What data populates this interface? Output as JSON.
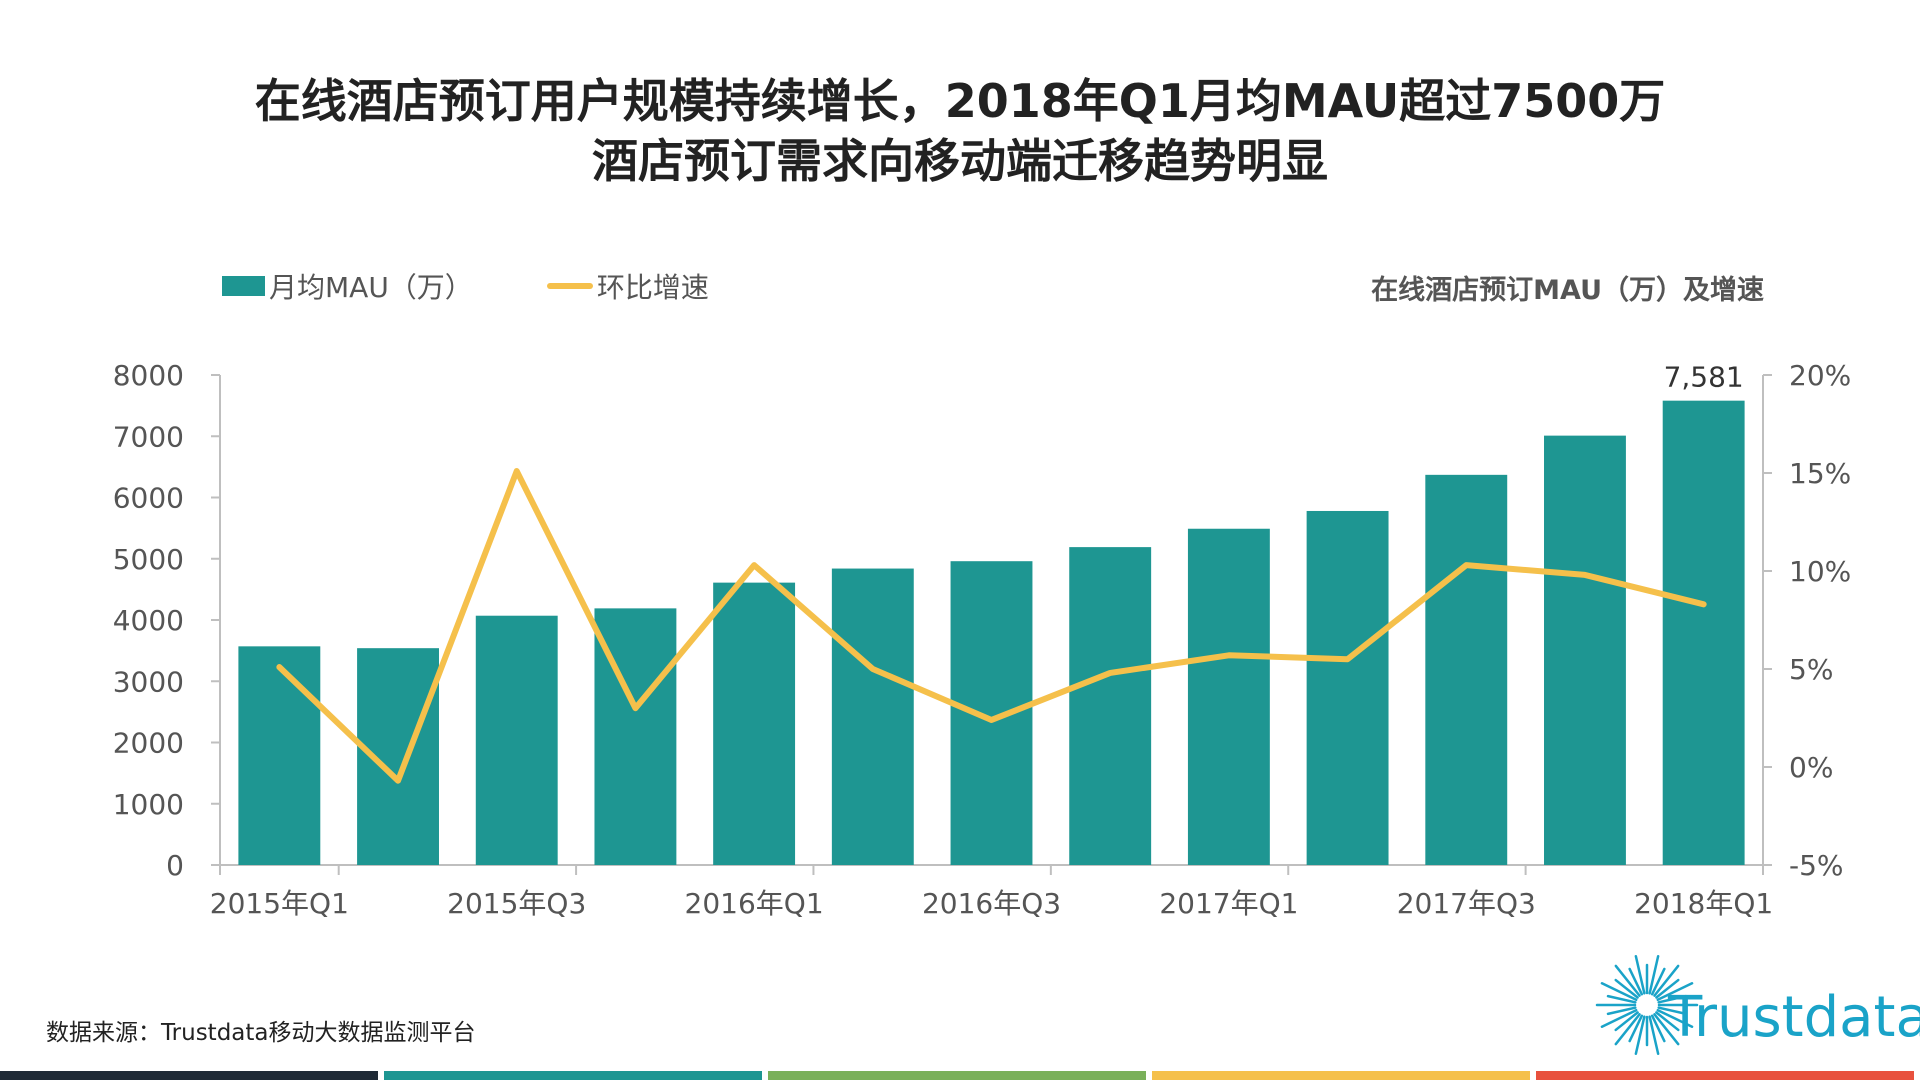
{
  "title_line1": "在线酒店预订用户规模持续增长，2018年Q1月均MAU超过7500万",
  "title_line2": "酒店预订需求向移动端迁移趋势明显",
  "chart_subtitle": "在线酒店预订MAU（万）及增速",
  "source": "数据来源：Trustdata移动大数据监测平台",
  "logo_text": "Trustdata",
  "colors": {
    "bar": "#1e9692",
    "line": "#f5c04b",
    "axis": "#bfbfbf",
    "tick_text": "#555555",
    "footer": [
      "#1f2a36",
      "#1e9692",
      "#7ab05a",
      "#f5c04b",
      "#e8513e"
    ]
  },
  "chart_data": {
    "type": "bar",
    "categories": [
      "2015年Q1",
      "2015年Q2",
      "2015年Q3",
      "2015年Q4",
      "2016年Q1",
      "2016年Q2",
      "2016年Q3",
      "2016年Q4",
      "2017年Q1",
      "2017年Q2",
      "2017年Q3",
      "2017年Q4",
      "2018年Q1"
    ],
    "x_tick_labels": [
      "2015年Q1",
      "2015年Q3",
      "2016年Q1",
      "2016年Q3",
      "2017年Q1",
      "2017年Q3",
      "2018年Q1"
    ],
    "series": [
      {
        "name": "月均MAU（万）",
        "type": "bar",
        "axis": "left",
        "values": [
          3570,
          3540,
          4070,
          4190,
          4610,
          4840,
          4960,
          5190,
          5490,
          5780,
          6370,
          7010,
          7581
        ]
      },
      {
        "name": "环比增速",
        "type": "line",
        "axis": "right",
        "values": [
          5.1,
          -0.7,
          15.1,
          3.0,
          10.3,
          5.0,
          2.4,
          4.8,
          5.7,
          5.5,
          10.3,
          9.8,
          8.3
        ]
      }
    ],
    "y_left": {
      "min": 0,
      "max": 8000,
      "ticks": [
        0,
        1000,
        2000,
        3000,
        4000,
        5000,
        6000,
        7000,
        8000
      ]
    },
    "y_right": {
      "min": -5,
      "max": 20,
      "ticks": [
        -5,
        0,
        5,
        10,
        15,
        20
      ],
      "tick_labels": [
        "-5%",
        "0%",
        "5%",
        "10%",
        "15%",
        "20%"
      ]
    },
    "data_labels": [
      {
        "index": 12,
        "text": "7,581"
      }
    ],
    "legend_position": "top-left",
    "grid": false
  }
}
